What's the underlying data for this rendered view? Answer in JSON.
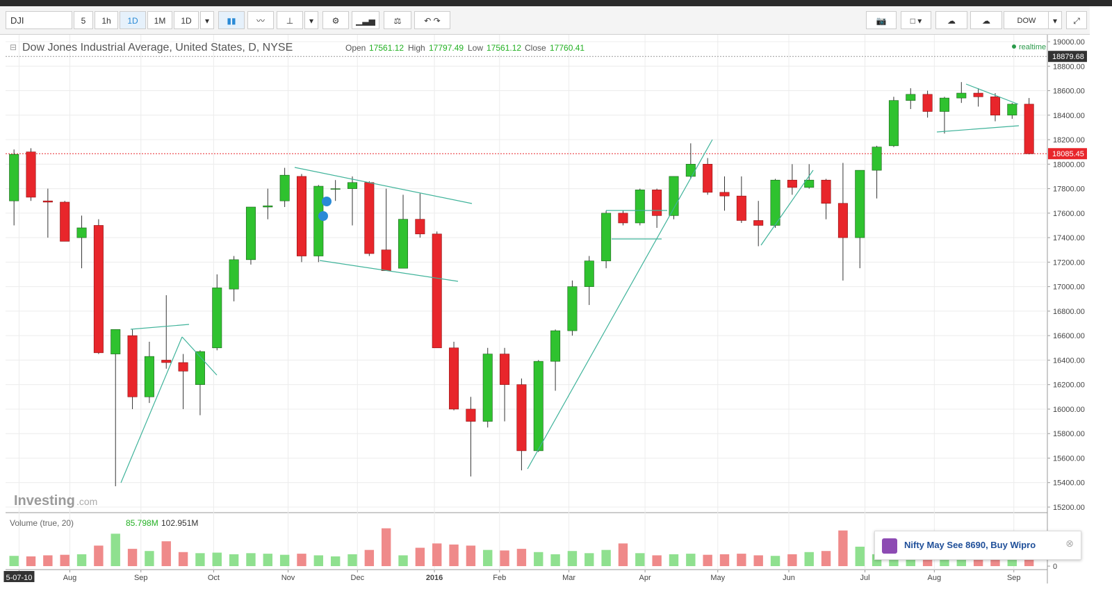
{
  "toolbar": {
    "symbol": "DJI",
    "intervals": [
      "5",
      "1h",
      "1D",
      "1M",
      "1D"
    ],
    "exchange": "DOW"
  },
  "popup": {
    "text": "Nifty May See 8690, Buy Wipro"
  },
  "watermark": {
    "brand": "Investing",
    "suffix": ".com"
  },
  "chart_data": {
    "type": "candlestick",
    "title": "Dow Jones Industrial Average, United States, D, NYSE",
    "quote": {
      "open_label": "Open",
      "open": "17561.12",
      "high_label": "High",
      "high": "17797.49",
      "low_label": "Low",
      "low": "17561.12",
      "close_label": "Close",
      "close": "17760.41"
    },
    "status": "realtime",
    "up_color": "#2fc22f",
    "down_color": "#e8262b",
    "edge_color": "#1b5e1b",
    "open": [
      17700,
      18100,
      17700,
      17690,
      17400,
      17500,
      16450,
      16600,
      16100,
      16400,
      16380,
      16200,
      16500,
      16980,
      17220,
      17650,
      17700,
      17900,
      17250,
      17800,
      17800,
      17850,
      17300,
      17150,
      17550,
      17430,
      16500,
      16000,
      15900,
      16450,
      16200,
      15660,
      16390,
      16640,
      17000,
      17210,
      17600,
      17520,
      17790,
      17580,
      17900,
      18000,
      17770,
      17740,
      17540,
      17500,
      17870,
      17810,
      17870,
      17680,
      17400,
      17950,
      18150,
      18520,
      18570,
      18430,
      18540,
      18580,
      18550,
      18400,
      18490
    ],
    "high": [
      18120,
      18130,
      17800,
      17700,
      17580,
      17550,
      16650,
      16650,
      16550,
      16930,
      16450,
      16480,
      17100,
      17250,
      17650,
      17800,
      17970,
      17920,
      17830,
      17870,
      17900,
      17860,
      17800,
      17750,
      17760,
      17450,
      16550,
      16100,
      16500,
      16500,
      16250,
      16400,
      16650,
      17050,
      17250,
      17620,
      17620,
      17800,
      17800,
      17900,
      18170,
      18050,
      17900,
      17900,
      17700,
      17880,
      18000,
      18000,
      17880,
      18010,
      17950,
      18150,
      18550,
      18620,
      18600,
      18550,
      18670,
      18620,
      18580,
      18500,
      18540
    ],
    "low": [
      17500,
      17700,
      17400,
      17370,
      17150,
      16450,
      15370,
      16000,
      16050,
      16330,
      16000,
      15950,
      16480,
      16880,
      17180,
      17550,
      17650,
      17200,
      17200,
      17700,
      17500,
      17250,
      17130,
      17150,
      17400,
      16500,
      15990,
      15450,
      15850,
      15900,
      15500,
      15650,
      16150,
      16600,
      16850,
      17150,
      17500,
      17500,
      17480,
      17550,
      17880,
      17750,
      17620,
      17520,
      17330,
      17480,
      17750,
      17800,
      17550,
      17050,
      17150,
      17720,
      18140,
      18450,
      18380,
      18250,
      18500,
      18470,
      18350,
      18370,
      18080
    ],
    "close": [
      18080,
      17730,
      17690,
      17370,
      17480,
      16460,
      16650,
      16100,
      16430,
      16380,
      16310,
      16470,
      16990,
      17220,
      17650,
      17660,
      17910,
      17250,
      17820,
      17800,
      17850,
      17270,
      17130,
      17550,
      17430,
      16500,
      16000,
      15900,
      16450,
      16200,
      15660,
      16390,
      16640,
      17000,
      17210,
      17600,
      17520,
      17790,
      17580,
      17900,
      18000,
      17770,
      17740,
      17540,
      17500,
      17870,
      17810,
      17870,
      17680,
      17400,
      17950,
      18140,
      18520,
      18570,
      18430,
      18540,
      18580,
      18550,
      18400,
      18490,
      18085
    ],
    "volume": [
      95,
      90,
      100,
      105,
      110,
      190,
      300,
      160,
      140,
      230,
      130,
      120,
      125,
      110,
      120,
      115,
      105,
      115,
      100,
      90,
      110,
      150,
      350,
      100,
      170,
      210,
      200,
      190,
      150,
      145,
      160,
      130,
      110,
      140,
      120,
      150,
      210,
      120,
      100,
      110,
      115,
      105,
      110,
      115,
      100,
      95,
      110,
      130,
      140,
      330,
      180,
      110,
      120,
      105,
      95,
      90,
      80,
      85,
      100,
      120,
      200
    ],
    "volume_label": "Volume (true, 20)",
    "volume_last": "85.798M",
    "volume_avg": "102.951M",
    "volume_up_color": "#8fe08f",
    "volume_down_color": "#ef8a8a",
    "vlim": [
      0,
      450
    ],
    "vticks": [
      0
    ],
    "xlim": [
      0,
      61.5
    ],
    "xticks": [
      {
        "value": 0.8,
        "label": "5-07-10"
      },
      {
        "value": 3.8,
        "label": "Aug"
      },
      {
        "value": 8.0,
        "label": "Sep"
      },
      {
        "value": 12.3,
        "label": "Oct"
      },
      {
        "value": 16.7,
        "label": "Nov"
      },
      {
        "value": 20.8,
        "label": "Dec"
      },
      {
        "value": 25.35,
        "label": "2016"
      },
      {
        "value": 29.2,
        "label": "Feb"
      },
      {
        "value": 33.3,
        "label": "Mar"
      },
      {
        "value": 37.8,
        "label": "Apr"
      },
      {
        "value": 42.1,
        "label": "May"
      },
      {
        "value": 46.3,
        "label": "Jun"
      },
      {
        "value": 50.8,
        "label": "Jul"
      },
      {
        "value": 54.9,
        "label": "Aug"
      },
      {
        "value": 59.6,
        "label": "Sep"
      }
    ],
    "ylim": [
      15200,
      19000
    ],
    "yticks": [
      {
        "value": 15200,
        "label": "15200.00"
      },
      {
        "value": 15400,
        "label": "15400.00"
      },
      {
        "value": 15600,
        "label": "15600.00"
      },
      {
        "value": 15800,
        "label": "15800.00"
      },
      {
        "value": 16000,
        "label": "16000.00"
      },
      {
        "value": 16200,
        "label": "16200.00"
      },
      {
        "value": 16400,
        "label": "16400.00"
      },
      {
        "value": 16600,
        "label": "16600.00"
      },
      {
        "value": 16800,
        "label": "16800.00"
      },
      {
        "value": 17000,
        "label": "17000.00"
      },
      {
        "value": 17200,
        "label": "17200.00"
      },
      {
        "value": 17400,
        "label": "17400.00"
      },
      {
        "value": 17600,
        "label": "17600.00"
      },
      {
        "value": 17800,
        "label": "17800.00"
      },
      {
        "value": 18000,
        "label": "18000.00"
      },
      {
        "value": 18200,
        "label": "18200.00"
      },
      {
        "value": 18400,
        "label": "18400.00"
      },
      {
        "value": 18600,
        "label": "18600.00"
      },
      {
        "value": 18800,
        "label": "18800.00"
      },
      {
        "value": 19000,
        "label": "19000.00"
      }
    ],
    "grid": true,
    "last_price": {
      "value": 18085.45,
      "label": "18085.45",
      "color": "#e8262b"
    },
    "crosshair_price": {
      "value": 18879.68,
      "label": "18879.68"
    }
  }
}
